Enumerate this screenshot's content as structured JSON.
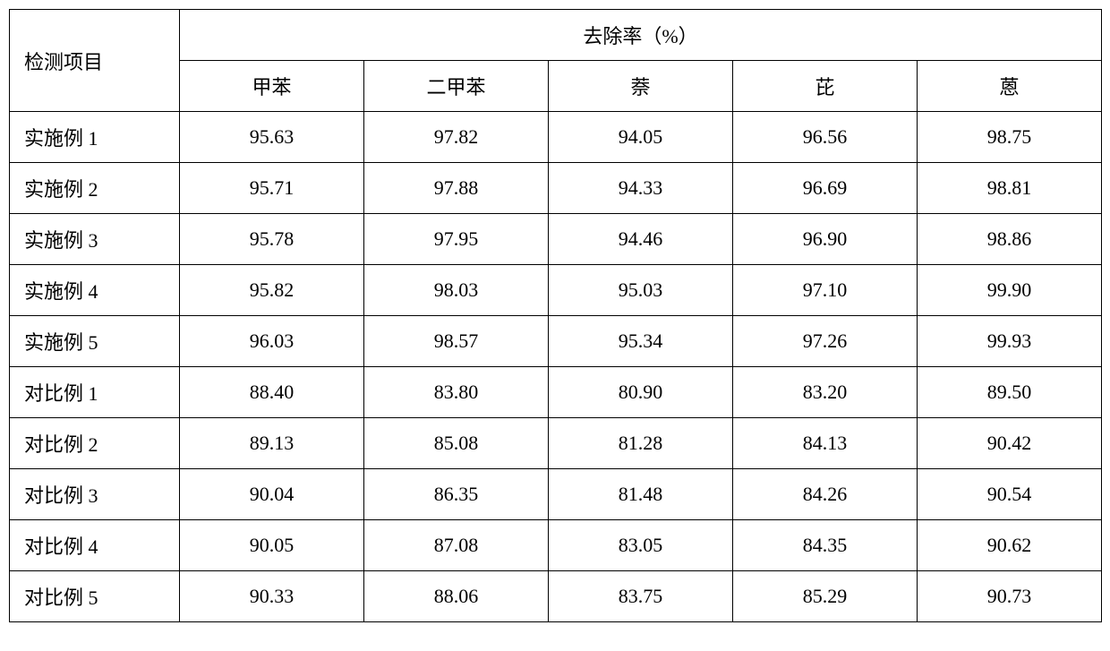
{
  "table": {
    "row_header_title": "检测项目",
    "group_header": "去除率（%）",
    "columns": [
      "甲苯",
      "二甲苯",
      "萘",
      "芘",
      "蒽"
    ],
    "rows": [
      {
        "label": "实施例 1",
        "values": [
          "95.63",
          "97.82",
          "94.05",
          "96.56",
          "98.75"
        ]
      },
      {
        "label": "实施例 2",
        "values": [
          "95.71",
          "97.88",
          "94.33",
          "96.69",
          "98.81"
        ]
      },
      {
        "label": "实施例 3",
        "values": [
          "95.78",
          "97.95",
          "94.46",
          "96.90",
          "98.86"
        ]
      },
      {
        "label": "实施例 4",
        "values": [
          "95.82",
          "98.03",
          "95.03",
          "97.10",
          "99.90"
        ]
      },
      {
        "label": "实施例 5",
        "values": [
          "96.03",
          "98.57",
          "95.34",
          "97.26",
          "99.93"
        ]
      },
      {
        "label": "对比例 1",
        "values": [
          "88.40",
          "83.80",
          "80.90",
          "83.20",
          "89.50"
        ]
      },
      {
        "label": "对比例 2",
        "values": [
          "89.13",
          "85.08",
          "81.28",
          "84.13",
          "90.42"
        ]
      },
      {
        "label": "对比例 3",
        "values": [
          "90.04",
          "86.35",
          "81.48",
          "84.26",
          "90.54"
        ]
      },
      {
        "label": "对比例 4",
        "values": [
          "90.05",
          "87.08",
          "83.05",
          "84.35",
          "90.62"
        ]
      },
      {
        "label": "对比例 5",
        "values": [
          "90.33",
          "88.06",
          "83.75",
          "85.29",
          "90.73"
        ]
      }
    ],
    "font_size": 22,
    "border_color": "#000000",
    "background_color": "#ffffff",
    "text_color": "#000000"
  }
}
